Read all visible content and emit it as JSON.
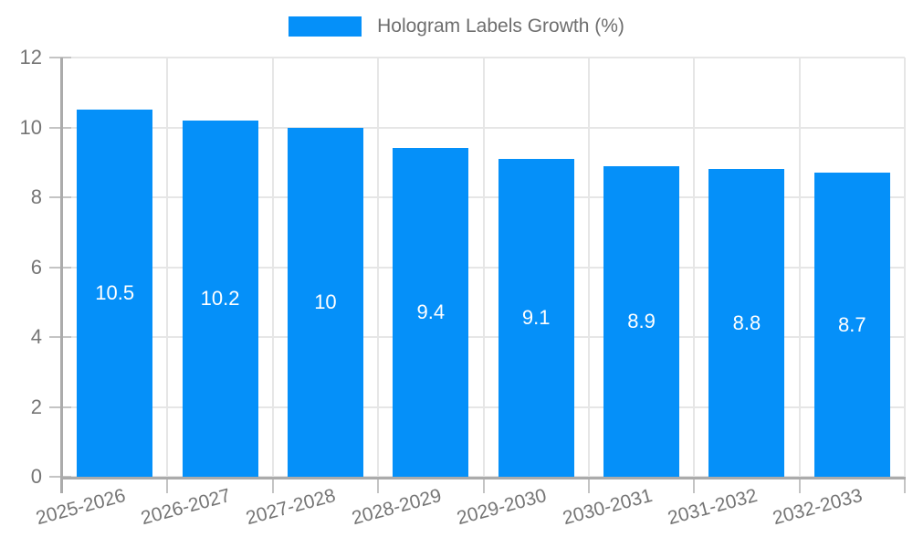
{
  "legend": {
    "label": "Hologram Labels Growth (%)"
  },
  "colors": {
    "bar": "#0590f9",
    "legend_text": "#6e6e6e",
    "axis_text": "#757575",
    "grid": "#e6e6e6",
    "tick": "#c4c4c4",
    "axis_line": "#ababab",
    "value_label": "#ffffff"
  },
  "chart_data": {
    "type": "bar",
    "title": "Hologram Labels Growth (%)",
    "categories": [
      "2025-2026",
      "2026-2027",
      "2027-2028",
      "2028-2029",
      "2029-2030",
      "2030-2031",
      "2031-2032",
      "2032-2033"
    ],
    "values": [
      10.5,
      10.2,
      10,
      9.4,
      9.1,
      8.9,
      8.8,
      8.7
    ],
    "value_labels": [
      "10.5",
      "10.2",
      "10",
      "9.4",
      "9.1",
      "8.9",
      "8.8",
      "8.7"
    ],
    "xlabel": "",
    "ylabel": "",
    "ylim": [
      0,
      12
    ],
    "yticks": [
      0,
      2,
      4,
      6,
      8,
      10,
      12
    ],
    "grid": true,
    "legend_position": "top-center",
    "bar_label_position": "center",
    "x_label_rotation_deg": -15
  }
}
